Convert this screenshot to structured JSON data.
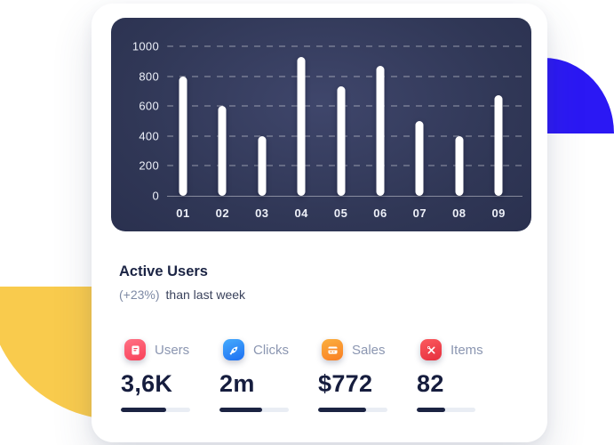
{
  "decor": {
    "blue_shape_color": "#2B18F4",
    "yellow_shape_color": "#F9CB4D"
  },
  "heading": {
    "title": "Active Users",
    "change": "(+23%)",
    "note": "than last week"
  },
  "stats": [
    {
      "icon": "report-icon",
      "label": "Users",
      "value": "3,6K",
      "progress_percent": 65,
      "icon_bg_from": "#FF7285",
      "icon_bg_to": "#F94058"
    },
    {
      "icon": "rocket-icon",
      "label": "Clicks",
      "value": "2m",
      "progress_percent": 61,
      "icon_bg_from": "#45ABFD",
      "icon_bg_to": "#1D6FF2"
    },
    {
      "icon": "credit-card-icon",
      "label": "Sales",
      "value": "$772",
      "progress_percent": 69,
      "icon_bg_from": "#FBB03F",
      "icon_bg_to": "#F97E23"
    },
    {
      "icon": "tools-icon",
      "label": "Items",
      "value": "82",
      "progress_percent": 49,
      "icon_bg_from": "#FB5A5E",
      "icon_bg_to": "#E62F3E"
    }
  ],
  "stats_style": {
    "track_color": "#E9EDF4",
    "fill_color": "#1B2342",
    "value_color": "#161D3E",
    "label_color": "#8B96B1"
  },
  "chart_data": {
    "type": "bar",
    "categories": [
      "01",
      "02",
      "03",
      "04",
      "05",
      "06",
      "07",
      "08",
      "09"
    ],
    "values": [
      800,
      600,
      400,
      930,
      730,
      870,
      500,
      400,
      670
    ],
    "title": "",
    "xlabel": "",
    "ylabel": "",
    "ylim": [
      0,
      1000
    ],
    "yticks": [
      0,
      200,
      400,
      600,
      800,
      1000
    ],
    "grid": "dashed-horizontal",
    "legend": false,
    "bar_color": "#FFFFFF",
    "panel_background_center": "#3F466B",
    "panel_background_edge": "#242A48",
    "tick_label_color": "#EDF0F8"
  }
}
